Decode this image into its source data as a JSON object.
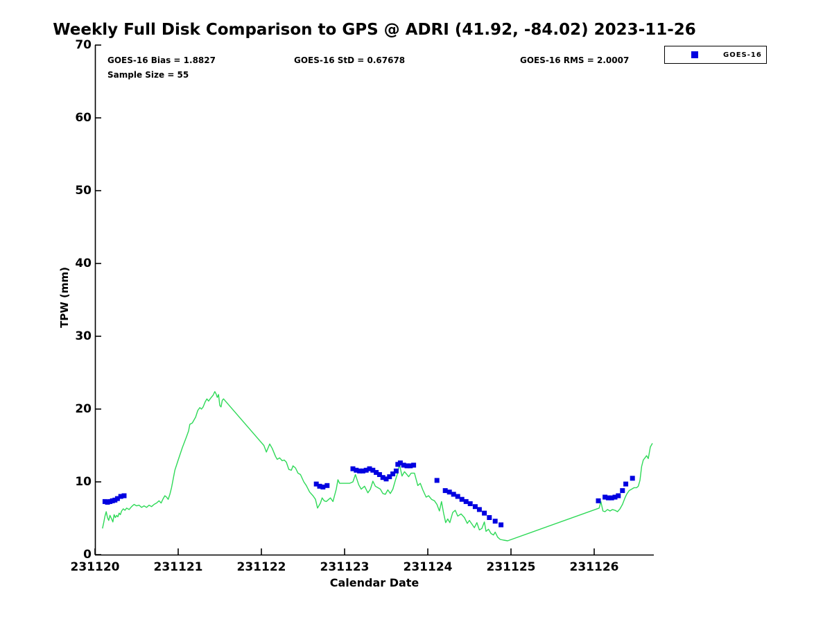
{
  "figure": {
    "title": "Weekly Full Disk Comparison to GPS @ ADRI (41.92, -84.02) 2023-11-26",
    "stats": {
      "bias": "GOES-16 Bias = 1.8827",
      "std": "GOES-16 StD = 0.67678",
      "rms": "GOES-16 RMS = 2.0007",
      "sample": "Sample Size = 55"
    },
    "legend": {
      "entries": [
        {
          "label": "GOES-16",
          "marker": "square",
          "color": "#0000e0"
        }
      ]
    }
  },
  "chart_data": {
    "type": "line",
    "title": "Weekly Full Disk Comparison to GPS @ ADRI (41.92, -84.02) 2023-11-26",
    "xlabel": "Calendar Date",
    "ylabel": "TPW (mm)",
    "x_tick_labels": [
      "231120",
      "231121",
      "231122",
      "231123",
      "231124",
      "231125",
      "231126"
    ],
    "y_tick_values": [
      0,
      10,
      20,
      30,
      40,
      50,
      60,
      70
    ],
    "ylim": [
      0,
      70
    ],
    "xlim_days": [
      0,
      6.72
    ],
    "grid": false,
    "legend_position": "top-right",
    "annotations": [
      "GOES-16 Bias = 1.8827",
      "GOES-16 StD = 0.67678",
      "GOES-16 RMS = 2.0007",
      "Sample Size = 55"
    ],
    "series": [
      {
        "name": "GPS",
        "type": "line",
        "color": "#2ed957",
        "points": [
          [
            0.09,
            3.6
          ],
          [
            0.105,
            4.4
          ],
          [
            0.12,
            5.3
          ],
          [
            0.135,
            5.9
          ],
          [
            0.15,
            5.1
          ],
          [
            0.165,
            4.7
          ],
          [
            0.18,
            5.4
          ],
          [
            0.2,
            4.9
          ],
          [
            0.215,
            4.5
          ],
          [
            0.23,
            5.5
          ],
          [
            0.245,
            5.1
          ],
          [
            0.26,
            5.4
          ],
          [
            0.275,
            5.2
          ],
          [
            0.29,
            5.7
          ],
          [
            0.305,
            5.5
          ],
          [
            0.32,
            6.0
          ],
          [
            0.34,
            6.3
          ],
          [
            0.36,
            6.1
          ],
          [
            0.38,
            6.4
          ],
          [
            0.41,
            6.2
          ],
          [
            0.44,
            6.6
          ],
          [
            0.47,
            6.9
          ],
          [
            0.5,
            6.7
          ],
          [
            0.53,
            6.8
          ],
          [
            0.56,
            6.5
          ],
          [
            0.59,
            6.7
          ],
          [
            0.62,
            6.5
          ],
          [
            0.65,
            6.8
          ],
          [
            0.68,
            6.6
          ],
          [
            0.71,
            6.9
          ],
          [
            0.74,
            7.1
          ],
          [
            0.77,
            7.4
          ],
          [
            0.795,
            7.1
          ],
          [
            0.82,
            7.7
          ],
          [
            0.84,
            8.1
          ],
          [
            0.86,
            7.9
          ],
          [
            0.88,
            7.6
          ],
          [
            0.9,
            8.3
          ],
          [
            0.92,
            9.2
          ],
          [
            0.96,
            11.6
          ],
          [
            1.0,
            13.0
          ],
          [
            1.05,
            14.7
          ],
          [
            1.1,
            16.2
          ],
          [
            1.125,
            17.0
          ],
          [
            1.14,
            17.9
          ],
          [
            1.17,
            18.1
          ],
          [
            1.21,
            18.9
          ],
          [
            1.235,
            19.8
          ],
          [
            1.26,
            20.2
          ],
          [
            1.28,
            20.0
          ],
          [
            1.3,
            20.3
          ],
          [
            1.325,
            21.0
          ],
          [
            1.345,
            21.4
          ],
          [
            1.365,
            21.1
          ],
          [
            1.39,
            21.5
          ],
          [
            1.42,
            21.9
          ],
          [
            1.44,
            22.4
          ],
          [
            1.455,
            22.1
          ],
          [
            1.47,
            21.6
          ],
          [
            1.485,
            22.0
          ],
          [
            1.5,
            20.5
          ],
          [
            1.515,
            20.3
          ],
          [
            1.53,
            21.2
          ],
          [
            1.545,
            21.4
          ],
          [
            2.03,
            15.0
          ],
          [
            2.06,
            14.1
          ],
          [
            2.1,
            15.2
          ],
          [
            2.13,
            14.6
          ],
          [
            2.17,
            13.5
          ],
          [
            2.19,
            13.1
          ],
          [
            2.22,
            13.3
          ],
          [
            2.25,
            12.9
          ],
          [
            2.275,
            13.0
          ],
          [
            2.3,
            12.7
          ],
          [
            2.33,
            11.7
          ],
          [
            2.36,
            11.6
          ],
          [
            2.38,
            12.2
          ],
          [
            2.41,
            11.9
          ],
          [
            2.44,
            11.2
          ],
          [
            2.47,
            11.0
          ],
          [
            2.51,
            10.0
          ],
          [
            2.54,
            9.5
          ],
          [
            2.58,
            8.6
          ],
          [
            2.62,
            8.1
          ],
          [
            2.65,
            7.6
          ],
          [
            2.675,
            6.4
          ],
          [
            2.71,
            7.1
          ],
          [
            2.73,
            7.8
          ],
          [
            2.755,
            7.4
          ],
          [
            2.78,
            7.3
          ],
          [
            2.81,
            7.6
          ],
          [
            2.83,
            7.8
          ],
          [
            2.86,
            7.3
          ],
          [
            2.9,
            9.0
          ],
          [
            2.92,
            10.3
          ],
          [
            2.94,
            9.8
          ],
          [
            3.0,
            9.8
          ],
          [
            3.06,
            9.8
          ],
          [
            3.1,
            10.0
          ],
          [
            3.13,
            11.0
          ],
          [
            3.17,
            9.6
          ],
          [
            3.2,
            9.0
          ],
          [
            3.24,
            9.4
          ],
          [
            3.28,
            8.5
          ],
          [
            3.31,
            9.0
          ],
          [
            3.34,
            10.1
          ],
          [
            3.37,
            9.4
          ],
          [
            3.4,
            9.2
          ],
          [
            3.43,
            9.0
          ],
          [
            3.46,
            8.4
          ],
          [
            3.49,
            8.3
          ],
          [
            3.52,
            8.9
          ],
          [
            3.55,
            8.4
          ],
          [
            3.58,
            9.0
          ],
          [
            3.61,
            10.2
          ],
          [
            3.635,
            11.1
          ],
          [
            3.66,
            12.4
          ],
          [
            3.69,
            10.8
          ],
          [
            3.72,
            11.4
          ],
          [
            3.75,
            11.0
          ],
          [
            3.77,
            10.7
          ],
          [
            3.8,
            11.2
          ],
          [
            3.84,
            11.2
          ],
          [
            3.88,
            9.5
          ],
          [
            3.91,
            9.8
          ],
          [
            3.94,
            8.9
          ],
          [
            3.98,
            7.9
          ],
          [
            4.01,
            8.1
          ],
          [
            4.045,
            7.6
          ],
          [
            4.08,
            7.4
          ],
          [
            4.11,
            6.9
          ],
          [
            4.14,
            6.0
          ],
          [
            4.165,
            7.3
          ],
          [
            4.19,
            5.7
          ],
          [
            4.215,
            4.4
          ],
          [
            4.24,
            4.9
          ],
          [
            4.265,
            4.4
          ],
          [
            4.3,
            5.8
          ],
          [
            4.33,
            6.1
          ],
          [
            4.36,
            5.3
          ],
          [
            4.4,
            5.6
          ],
          [
            4.44,
            5.1
          ],
          [
            4.475,
            4.3
          ],
          [
            4.5,
            4.7
          ],
          [
            4.53,
            4.2
          ],
          [
            4.56,
            3.7
          ],
          [
            4.59,
            4.4
          ],
          [
            4.62,
            3.4
          ],
          [
            4.65,
            3.6
          ],
          [
            4.68,
            4.5
          ],
          [
            4.7,
            3.2
          ],
          [
            4.73,
            3.5
          ],
          [
            4.76,
            2.9
          ],
          [
            4.79,
            2.7
          ],
          [
            4.81,
            3.1
          ],
          [
            4.84,
            2.4
          ],
          [
            4.87,
            2.1
          ],
          [
            4.91,
            2.0
          ],
          [
            4.96,
            1.9
          ],
          [
            6.06,
            6.4
          ],
          [
            6.08,
            7.3
          ],
          [
            6.105,
            6.0
          ],
          [
            6.13,
            5.9
          ],
          [
            6.16,
            6.2
          ],
          [
            6.19,
            6.0
          ],
          [
            6.22,
            6.2
          ],
          [
            6.25,
            6.1
          ],
          [
            6.28,
            5.9
          ],
          [
            6.31,
            6.3
          ],
          [
            6.34,
            6.9
          ],
          [
            6.37,
            7.8
          ],
          [
            6.39,
            8.3
          ],
          [
            6.42,
            8.8
          ],
          [
            6.45,
            9.0
          ],
          [
            6.48,
            9.2
          ],
          [
            6.51,
            9.2
          ],
          [
            6.53,
            9.4
          ],
          [
            6.55,
            10.2
          ],
          [
            6.57,
            12.1
          ],
          [
            6.59,
            13.0
          ],
          [
            6.61,
            13.3
          ],
          [
            6.63,
            13.6
          ],
          [
            6.65,
            13.2
          ],
          [
            6.675,
            14.8
          ],
          [
            6.7,
            15.3
          ]
        ]
      },
      {
        "name": "GOES-16",
        "type": "scatter",
        "marker": "square",
        "color": "#0000e0",
        "points": [
          [
            0.12,
            7.3
          ],
          [
            0.15,
            7.2
          ],
          [
            0.18,
            7.3
          ],
          [
            0.21,
            7.4
          ],
          [
            0.24,
            7.5
          ],
          [
            0.27,
            7.7
          ],
          [
            0.31,
            8.0
          ],
          [
            0.35,
            8.1
          ],
          [
            2.66,
            9.7
          ],
          [
            2.7,
            9.4
          ],
          [
            2.74,
            9.3
          ],
          [
            2.79,
            9.5
          ],
          [
            3.1,
            11.8
          ],
          [
            3.14,
            11.6
          ],
          [
            3.18,
            11.5
          ],
          [
            3.22,
            11.5
          ],
          [
            3.26,
            11.6
          ],
          [
            3.3,
            11.8
          ],
          [
            3.34,
            11.6
          ],
          [
            3.38,
            11.3
          ],
          [
            3.42,
            11.0
          ],
          [
            3.46,
            10.6
          ],
          [
            3.5,
            10.4
          ],
          [
            3.54,
            10.7
          ],
          [
            3.58,
            11.1
          ],
          [
            3.62,
            11.5
          ],
          [
            3.64,
            12.4
          ],
          [
            3.67,
            12.6
          ],
          [
            3.71,
            12.3
          ],
          [
            3.75,
            12.2
          ],
          [
            3.79,
            12.2
          ],
          [
            3.83,
            12.3
          ],
          [
            4.11,
            10.2
          ],
          [
            4.21,
            8.8
          ],
          [
            4.26,
            8.6
          ],
          [
            4.31,
            8.3
          ],
          [
            4.36,
            8.0
          ],
          [
            4.41,
            7.6
          ],
          [
            4.46,
            7.3
          ],
          [
            4.51,
            7.0
          ],
          [
            4.57,
            6.6
          ],
          [
            4.62,
            6.2
          ],
          [
            4.68,
            5.7
          ],
          [
            4.74,
            5.1
          ],
          [
            4.81,
            4.6
          ],
          [
            4.88,
            4.1
          ],
          [
            6.05,
            7.4
          ],
          [
            6.13,
            7.9
          ],
          [
            6.17,
            7.8
          ],
          [
            6.21,
            7.8
          ],
          [
            6.25,
            7.9
          ],
          [
            6.29,
            8.1
          ],
          [
            6.34,
            8.8
          ],
          [
            6.38,
            9.7
          ],
          [
            6.46,
            10.5
          ]
        ]
      }
    ]
  }
}
